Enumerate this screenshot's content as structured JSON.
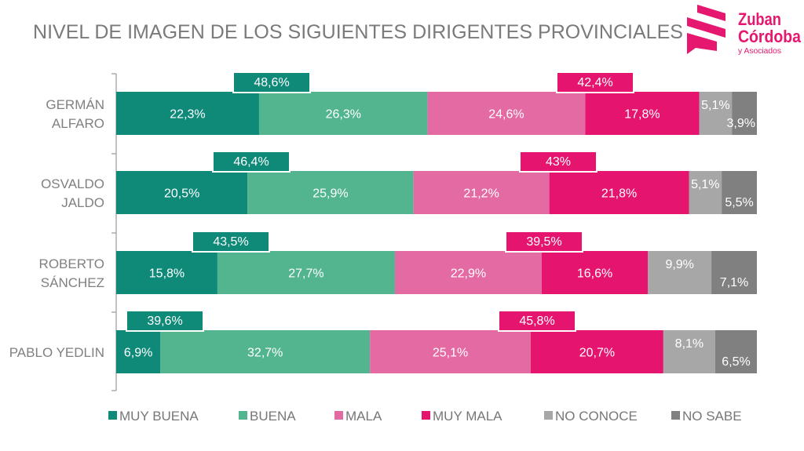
{
  "header": {
    "title": "NIVEL DE IMAGEN DE LOS SIGUIENTES DIRIGENTES PROVINCIALES"
  },
  "logo": {
    "line1": "Zuban",
    "line2": "Córdoba",
    "line3": "y Asociados",
    "color": "#e5176f"
  },
  "chart_data": {
    "type": "bar",
    "orientation": "horizontal-stacked",
    "title": "NIVEL DE IMAGEN DE LOS SIGUIENTES DIRIGENTES PROVINCIALES",
    "xlabel": "",
    "ylabel": "",
    "xlim": [
      0,
      100
    ],
    "grid": false,
    "legend": "bottom",
    "categories": [
      "GERMÁN ALFARO",
      "OSVALDO JALDO",
      "ROBERTO SÁNCHEZ",
      "PABLO YEDLIN"
    ],
    "category_lines": [
      [
        "GERMÁN",
        "ALFARO"
      ],
      [
        "OSVALDO",
        "JALDO"
      ],
      [
        "ROBERTO",
        "SÁNCHEZ"
      ],
      [
        "PABLO YEDLIN"
      ]
    ],
    "series": [
      {
        "name": "MUY BUENA",
        "color": "#0f8a79",
        "values": [
          22.3,
          20.5,
          15.8,
          6.9
        ],
        "labels": [
          "22,3%",
          "20,5%",
          "15,8%",
          "6,9%"
        ]
      },
      {
        "name": "BUENA",
        "color": "#53b58f",
        "values": [
          26.3,
          25.9,
          27.7,
          32.7
        ],
        "labels": [
          "26,3%",
          "25,9%",
          "27,7%",
          "32,7%"
        ]
      },
      {
        "name": "MALA",
        "color": "#e46aa3",
        "values": [
          24.6,
          21.2,
          22.9,
          25.1
        ],
        "labels": [
          "24,6%",
          "21,2%",
          "22,9%",
          "25,1%"
        ]
      },
      {
        "name": "MUY MALA",
        "color": "#e5146f",
        "values": [
          17.8,
          21.8,
          16.6,
          20.7
        ],
        "labels": [
          "17,8%",
          "21,8%",
          "16,6%",
          "20,7%"
        ]
      },
      {
        "name": "NO CONOCE",
        "color": "#a7a7a7",
        "values": [
          5.1,
          5.1,
          9.9,
          8.1
        ],
        "labels": [
          "5,1%",
          "5,1%",
          "9,9%",
          "8,1%"
        ]
      },
      {
        "name": "NO SABE",
        "color": "#808080",
        "values": [
          3.9,
          5.5,
          7.1,
          6.5
        ],
        "labels": [
          "3,9%",
          "5,5%",
          "7,1%",
          "6,5%"
        ]
      }
    ],
    "totals": {
      "positive": {
        "color": "#0f8a79",
        "values": [
          48.6,
          46.4,
          43.5,
          39.6
        ],
        "labels": [
          "48,6%",
          "46,4%",
          "43,5%",
          "39,6%"
        ]
      },
      "negative": {
        "color": "#e5146f",
        "values": [
          42.4,
          43.0,
          39.5,
          45.8
        ],
        "labels": [
          "42,4%",
          "43%",
          "39,5%",
          "45,8%"
        ]
      }
    }
  }
}
